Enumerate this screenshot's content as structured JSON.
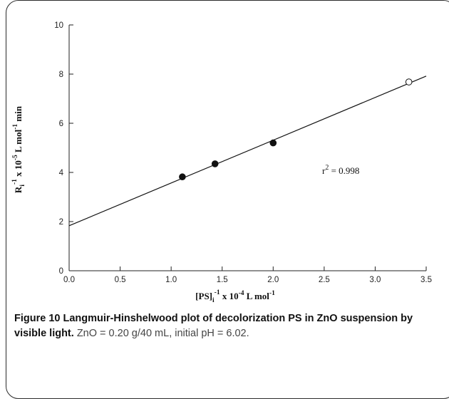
{
  "chart_data": {
    "type": "scatter",
    "x_ticks": [
      "0.0",
      "0.5",
      "1.0",
      "1.5",
      "2.0",
      "2.5",
      "3.0",
      "3.5"
    ],
    "y_ticks": [
      "0",
      "2",
      "4",
      "6",
      "8",
      "10"
    ],
    "xlim": [
      0,
      3.5
    ],
    "ylim": [
      0,
      10
    ],
    "grid": false,
    "series": [
      {
        "marker": "filled-circle",
        "x": [
          1.11,
          1.43,
          2.0
        ],
        "y": [
          3.82,
          4.35,
          5.2
        ]
      },
      {
        "marker": "open-circle",
        "x": [
          3.33
        ],
        "y": [
          7.68
        ]
      }
    ],
    "fit_line": {
      "slope": 1.74,
      "intercept": 1.83
    },
    "annotation": {
      "base": "r",
      "sup": "2",
      "rest": " = 0.998"
    },
    "xlabel": {
      "a": "[PS]",
      "sub": "i",
      "sup1": "-1",
      "b": " x 10",
      "sup2": "-4",
      "c": " L mol",
      "sup3": "-1"
    },
    "ylabel": {
      "a": "R",
      "sub": "i",
      "sup1": "-1",
      "b": " x 10",
      "sup2": "-5",
      "c": " L mol",
      "sup3": "-1",
      "d": " min"
    }
  },
  "caption": {
    "bold": "Figure 10 Langmuir-Hinshelwood plot of decolorization PS in ZnO suspension by visible light.",
    "rest": " ZnO = 0.20 g/40 mL, initial pH = 6.02."
  }
}
